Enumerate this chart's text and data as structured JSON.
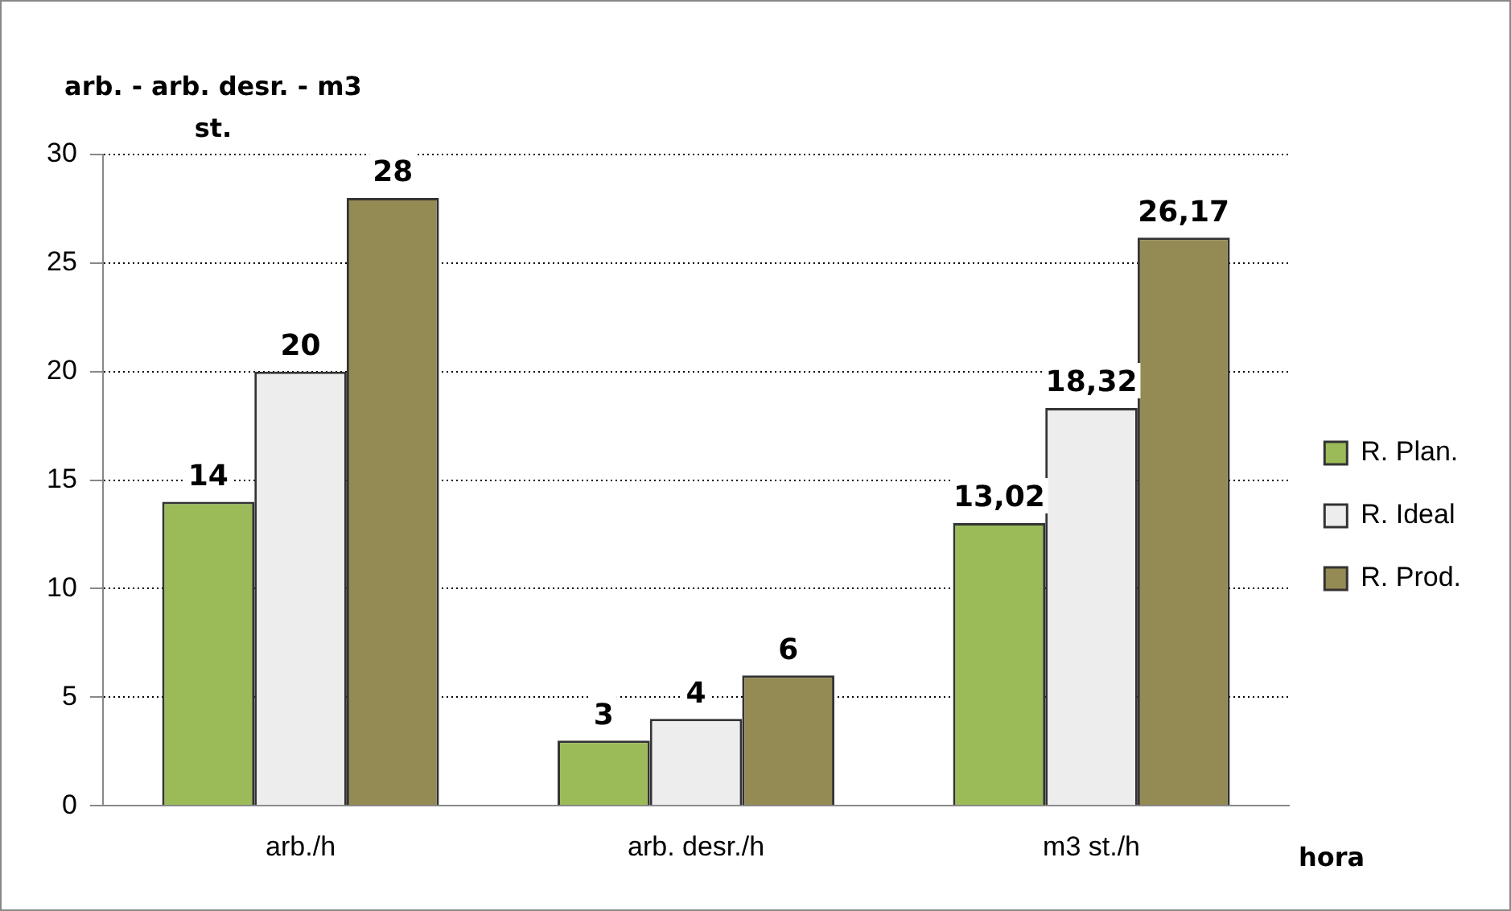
{
  "chart_data": {
    "type": "bar",
    "ylabel": "arb. - arb. desr. - m3 st.",
    "xlabel": "hora",
    "categories": [
      "arb./h",
      "arb. desr./h",
      "m3 st./h"
    ],
    "series": [
      {
        "name": "R. Plan.",
        "color": "#9bbb59",
        "values": [
          14,
          3,
          13.02
        ],
        "value_labels": [
          "14",
          "3",
          "13,02"
        ]
      },
      {
        "name": "R. Ideal",
        "color": "#ededed",
        "values": [
          20,
          4,
          18.32
        ],
        "value_labels": [
          "20",
          "4",
          "18,32"
        ]
      },
      {
        "name": "R. Prod.",
        "color": "#948a54",
        "values": [
          28,
          6,
          26.17
        ],
        "value_labels": [
          "28",
          "6",
          "26,17"
        ]
      }
    ],
    "ylim": [
      0,
      30
    ],
    "yticks": [
      0,
      5,
      10,
      15,
      20,
      25,
      30
    ],
    "grid": "y",
    "legend": "right"
  }
}
